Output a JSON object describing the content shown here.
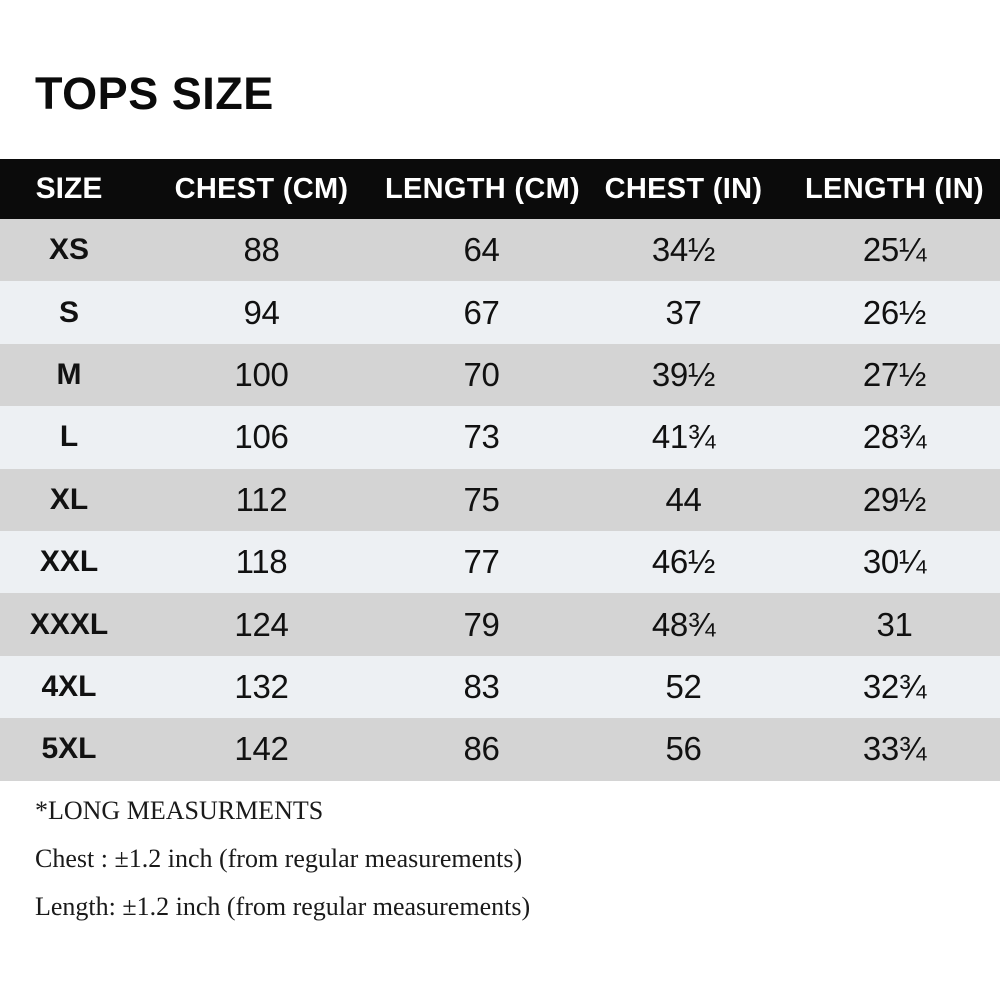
{
  "title": "TOPS SIZE",
  "table": {
    "columns": [
      "SIZE",
      "CHEST (CM)",
      "LENGTH (CM)",
      "CHEST (IN)",
      "LENGTH (IN)"
    ],
    "rows": [
      {
        "size": "XS",
        "chest_cm": "88",
        "length_cm": "64",
        "chest_in": "34½",
        "length_in": "25¼"
      },
      {
        "size": "S",
        "chest_cm": "94",
        "length_cm": "67",
        "chest_in": "37",
        "length_in": "26½"
      },
      {
        "size": "M",
        "chest_cm": "100",
        "length_cm": "70",
        "chest_in": "39½",
        "length_in": "27½"
      },
      {
        "size": "L",
        "chest_cm": "106",
        "length_cm": "73",
        "chest_in": "41¾",
        "length_in": "28¾"
      },
      {
        "size": "XL",
        "chest_cm": "112",
        "length_cm": "75",
        "chest_in": "44",
        "length_in": "29½"
      },
      {
        "size": "XXL",
        "chest_cm": "118",
        "length_cm": "77",
        "chest_in": "46½",
        "length_in": "30¼"
      },
      {
        "size": "XXXL",
        "chest_cm": "124",
        "length_cm": "79",
        "chest_in": "48¾",
        "length_in": "31"
      },
      {
        "size": "4XL",
        "chest_cm": "132",
        "length_cm": "83",
        "chest_in": "52",
        "length_in": "32¾"
      },
      {
        "size": "5XL",
        "chest_cm": "142",
        "length_cm": "86",
        "chest_in": "56",
        "length_in": "33¾"
      }
    ]
  },
  "notes": [
    "*LONG MEASURMENTS",
    "Chest : ±1.2 inch (from regular measurements)",
    "Length: ±1.2 inch (from regular measurements)"
  ],
  "colors": {
    "header_bg": "#0b0b0b",
    "header_text": "#ffffff",
    "row_odd": "#d4d4d4",
    "row_even": "#edf0f3",
    "text": "#111111",
    "background": "#ffffff"
  }
}
